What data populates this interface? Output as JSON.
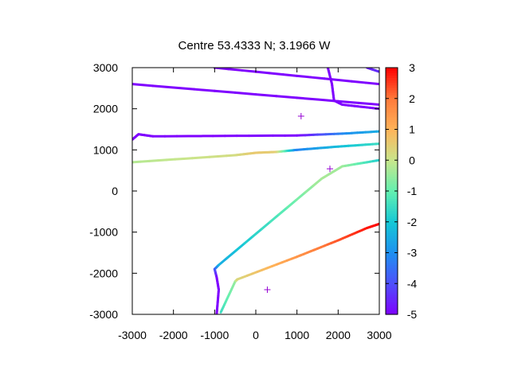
{
  "chart_data": {
    "type": "line",
    "title": "Centre 53.4333 N; 3.1966  W",
    "xlim": [
      -3000,
      3000
    ],
    "ylim": [
      -3000,
      3000
    ],
    "x_ticks": [
      -3000,
      -2000,
      -1000,
      0,
      1000,
      2000,
      3000
    ],
    "y_ticks": [
      -3000,
      -2000,
      -1000,
      0,
      1000,
      2000,
      3000
    ],
    "colorbar": {
      "range": [
        -5,
        3
      ],
      "ticks": [
        -5,
        -4,
        -3,
        -2,
        -1,
        0,
        1,
        2,
        3
      ],
      "palette": [
        "#7f00ff",
        "#4f4ffb",
        "#1e90f0",
        "#16c8d6",
        "#63f0b0",
        "#c8e68c",
        "#ffb45a",
        "#ff7a3b",
        "#ff0000"
      ]
    },
    "markers": [
      {
        "x": 1100,
        "y": 1820
      },
      {
        "x": 1800,
        "y": 540
      },
      {
        "x": 280,
        "y": -2400
      }
    ],
    "tracks": [
      {
        "points": [
          [
            -3000,
            2600
          ],
          [
            3000,
            2100
          ]
        ],
        "values": [
          -5,
          -5
        ]
      },
      {
        "points": [
          [
            -1000,
            3000
          ],
          [
            3000,
            2600
          ]
        ],
        "values": [
          -5,
          -5
        ]
      },
      {
        "points": [
          [
            1750,
            3000
          ],
          [
            1850,
            2600
          ],
          [
            1900,
            2200
          ],
          [
            2100,
            2100
          ],
          [
            3000,
            2000
          ]
        ],
        "values": [
          -5,
          -5,
          -5,
          -5,
          -5
        ]
      },
      {
        "points": [
          [
            2700,
            3000
          ],
          [
            3000,
            2900
          ]
        ],
        "values": [
          -4.6,
          -4.4
        ]
      },
      {
        "points": [
          [
            -3000,
            1250
          ],
          [
            -2850,
            1380
          ],
          [
            -2500,
            1330
          ],
          [
            1000,
            1350
          ],
          [
            2200,
            1400
          ],
          [
            3000,
            1450
          ]
        ],
        "values": [
          -5,
          -5,
          -5,
          -5,
          -3,
          -2.5
        ]
      },
      {
        "points": [
          [
            -3000,
            700
          ],
          [
            -500,
            870
          ],
          [
            0,
            930
          ],
          [
            500,
            950
          ],
          [
            1000,
            1000
          ],
          [
            2000,
            1080
          ],
          [
            3000,
            1150
          ]
        ],
        "values": [
          -0.2,
          0.2,
          0.6,
          0.5,
          -3.2,
          -2.2,
          -1.5
        ]
      },
      {
        "points": [
          [
            -950,
            -3000
          ],
          [
            -900,
            -2400
          ],
          [
            -950,
            -2100
          ],
          [
            -1000,
            -1900
          ],
          [
            -900,
            -1800
          ],
          [
            1600,
            300
          ],
          [
            2100,
            600
          ],
          [
            3000,
            750
          ]
        ],
        "values": [
          -5,
          -5,
          -5,
          -4,
          -2.5,
          -0.3,
          -0.4,
          -1.8
        ]
      },
      {
        "points": [
          [
            -850,
            -2950
          ],
          [
            -500,
            -2200
          ],
          [
            -450,
            -2150
          ],
          [
            1000,
            -1600
          ],
          [
            2000,
            -1200
          ],
          [
            2700,
            -900
          ],
          [
            3000,
            -800
          ]
        ],
        "values": [
          -1.5,
          -0.5,
          0.3,
          1.5,
          2.3,
          2.8,
          3
        ]
      }
    ]
  }
}
